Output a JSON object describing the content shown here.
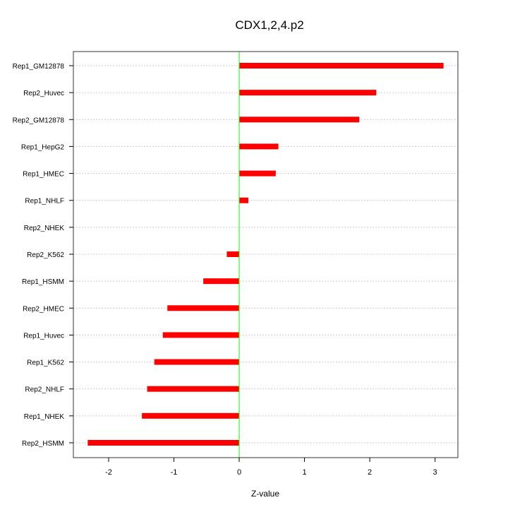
{
  "chart_data": {
    "type": "bar",
    "orientation": "horizontal",
    "title": "CDX1,2,4.p2",
    "xlabel": "Z-value",
    "ylabel": "",
    "xlim": [
      -2.54,
      3.35
    ],
    "xticks": [
      -2,
      -1,
      0,
      1,
      2,
      3
    ],
    "grid": true,
    "categories": [
      "Rep1_GM12878",
      "Rep2_Huvec",
      "Rep2_GM12878",
      "Rep1_HepG2",
      "Rep1_HMEC",
      "Rep1_NHLF",
      "Rep2_NHEK",
      "Rep2_K562",
      "Rep1_HSMM",
      "Rep2_HMEC",
      "Rep1_Huvec",
      "Rep1_K562",
      "Rep2_NHLF",
      "Rep1_NHEK",
      "Rep2_HSMM"
    ],
    "values": [
      3.13,
      2.1,
      1.84,
      0.6,
      0.56,
      0.14,
      0.0,
      -0.19,
      -0.55,
      -1.1,
      -1.17,
      -1.3,
      -1.41,
      -1.49,
      -2.32
    ],
    "bar_color": "#ff0000",
    "zero_line_color": "#00ff00"
  }
}
